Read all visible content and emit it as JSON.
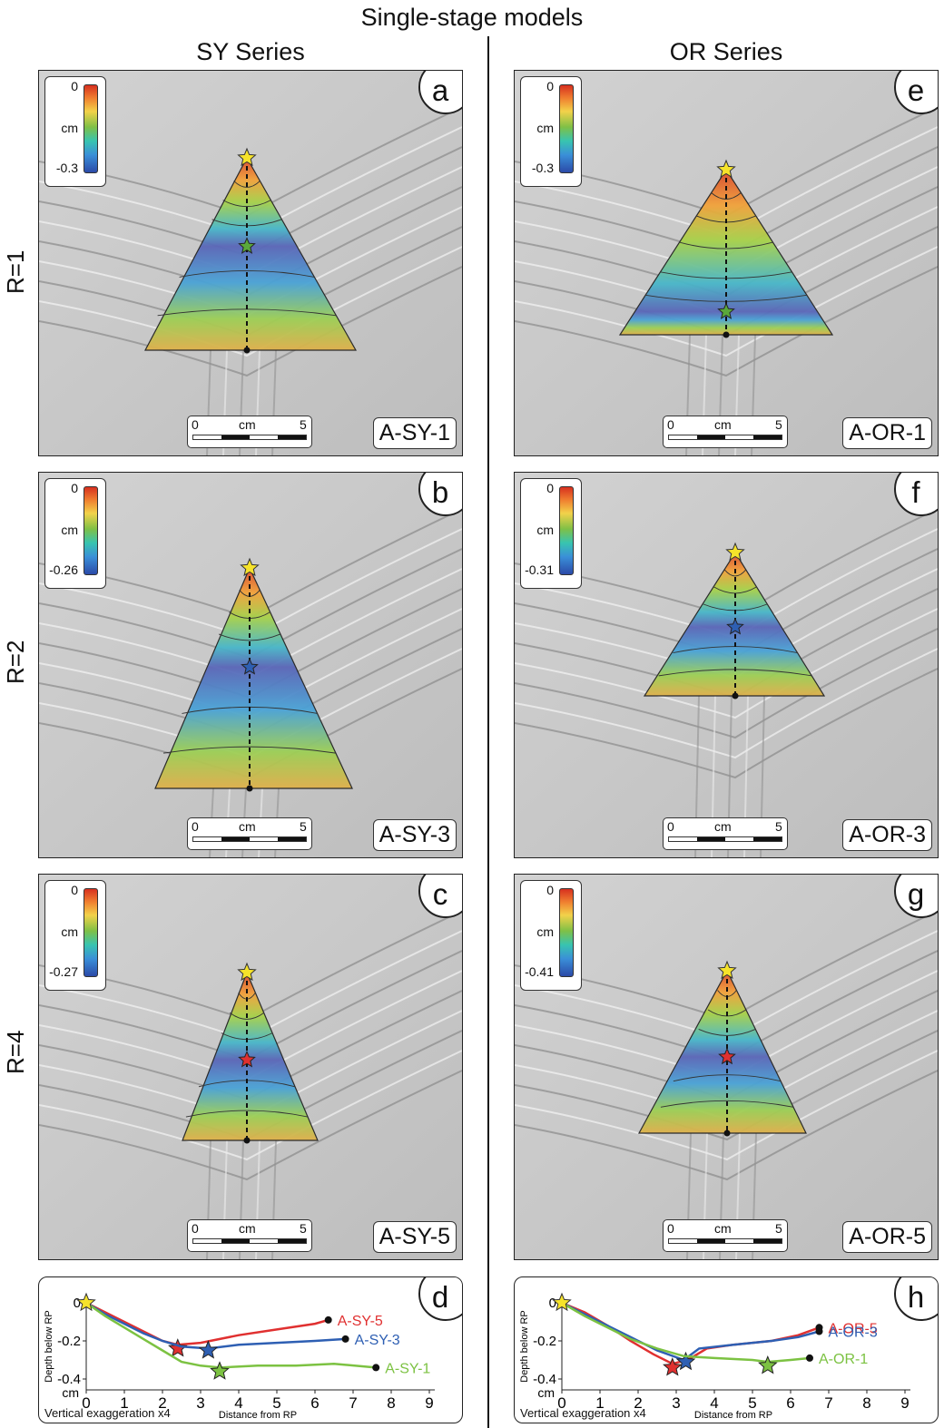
{
  "figure_title": "Single-stage models",
  "columns": [
    "SY Series",
    "OR Series"
  ],
  "rows": [
    "R=1",
    "R=2",
    "R=4"
  ],
  "panels": [
    {
      "letter": "a",
      "label": "A-SY-1",
      "legend_max": "0",
      "legend_unit": "cm",
      "legend_min": "-0.3",
      "scale": {
        "zero": "0",
        "unit": "cm",
        "five": "5"
      },
      "deep_star_color": "#5aa83a"
    },
    {
      "letter": "b",
      "label": "A-SY-3",
      "legend_max": "0",
      "legend_unit": "cm",
      "legend_min": "-0.26",
      "scale": {
        "zero": "0",
        "unit": "cm",
        "five": "5"
      },
      "deep_star_color": "#2e5fb3"
    },
    {
      "letter": "c",
      "label": "A-SY-5",
      "legend_max": "0",
      "legend_unit": "cm",
      "legend_min": "-0.27",
      "scale": {
        "zero": "0",
        "unit": "cm",
        "five": "5"
      },
      "deep_star_color": "#e03030"
    },
    {
      "letter": "e",
      "label": "A-OR-1",
      "legend_max": "0",
      "legend_unit": "cm",
      "legend_min": "-0.3",
      "scale": {
        "zero": "0",
        "unit": "cm",
        "five": "5"
      },
      "deep_star_color": "#5aa83a"
    },
    {
      "letter": "f",
      "label": "A-OR-3",
      "legend_max": "0",
      "legend_unit": "cm",
      "legend_min": "-0.31",
      "scale": {
        "zero": "0",
        "unit": "cm",
        "five": "5"
      },
      "deep_star_color": "#2e5fb3"
    },
    {
      "letter": "g",
      "label": "A-OR-5",
      "legend_max": "0",
      "legend_unit": "cm",
      "legend_min": "-0.41",
      "scale": {
        "zero": "0",
        "unit": "cm",
        "five": "5"
      },
      "deep_star_color": "#e03030"
    }
  ],
  "profiles": [
    {
      "letter": "d",
      "ylabel": "Depth below RP",
      "yunit": "cm",
      "xlabel": "Distance from RP",
      "note": "Vertical exaggeration x4",
      "x_ticks": [
        "0",
        "1",
        "2",
        "3",
        "4",
        "5",
        "6",
        "7",
        "8",
        "9"
      ],
      "y_ticks": [
        "0",
        "-0.2",
        "-0.4"
      ],
      "series": [
        {
          "name": "A-SY-5",
          "color": "#e03030",
          "points": [
            [
              0,
              0
            ],
            [
              0.5,
              -0.05
            ],
            [
              1,
              -0.1
            ],
            [
              1.5,
              -0.15
            ],
            [
              2,
              -0.2
            ],
            [
              2.4,
              -0.22
            ],
            [
              3,
              -0.21
            ],
            [
              4,
              -0.17
            ],
            [
              5,
              -0.14
            ],
            [
              6,
              -0.11
            ],
            [
              6.35,
              -0.09
            ]
          ],
          "star": [
            2.4,
            -0.24
          ]
        },
        {
          "name": "A-SY-3",
          "color": "#2e5fb3",
          "points": [
            [
              0,
              0
            ],
            [
              0.5,
              -0.06
            ],
            [
              1,
              -0.11
            ],
            [
              1.5,
              -0.16
            ],
            [
              2,
              -0.2
            ],
            [
              2.5,
              -0.23
            ],
            [
              3.2,
              -0.24
            ],
            [
              4,
              -0.22
            ],
            [
              5,
              -0.21
            ],
            [
              6,
              -0.2
            ],
            [
              6.8,
              -0.19
            ]
          ],
          "star": [
            3.2,
            -0.25
          ]
        },
        {
          "name": "A-SY-1",
          "color": "#7cc242",
          "points": [
            [
              0,
              0
            ],
            [
              0.5,
              -0.07
            ],
            [
              1,
              -0.13
            ],
            [
              1.5,
              -0.19
            ],
            [
              2,
              -0.25
            ],
            [
              2.5,
              -0.31
            ],
            [
              3,
              -0.33
            ],
            [
              3.5,
              -0.34
            ],
            [
              4.5,
              -0.33
            ],
            [
              5.5,
              -0.33
            ],
            [
              6.5,
              -0.32
            ],
            [
              7.6,
              -0.34
            ]
          ],
          "star": [
            3.5,
            -0.36
          ]
        }
      ]
    },
    {
      "letter": "h",
      "ylabel": "Depth below RP",
      "yunit": "cm",
      "xlabel": "Distance from RP",
      "note": "Vertical exaggeration x4",
      "x_ticks": [
        "0",
        "1",
        "2",
        "3",
        "4",
        "5",
        "6",
        "7",
        "8",
        "9"
      ],
      "y_ticks": [
        "0",
        "-0.2",
        "-0.4"
      ],
      "series": [
        {
          "name": "A-OR-5",
          "color": "#e03030",
          "points": [
            [
              0,
              0
            ],
            [
              0.6,
              -0.05
            ],
            [
              1.2,
              -0.12
            ],
            [
              1.8,
              -0.2
            ],
            [
              2.4,
              -0.27
            ],
            [
              2.9,
              -0.32
            ],
            [
              3.3,
              -0.3
            ],
            [
              3.8,
              -0.24
            ],
            [
              4.5,
              -0.22
            ],
            [
              5.5,
              -0.2
            ],
            [
              6.2,
              -0.17
            ],
            [
              6.75,
              -0.13
            ]
          ],
          "star": [
            2.9,
            -0.34
          ]
        },
        {
          "name": "A-OR-3",
          "color": "#2e5fb3",
          "points": [
            [
              0,
              0
            ],
            [
              0.6,
              -0.06
            ],
            [
              1.2,
              -0.12
            ],
            [
              1.8,
              -0.18
            ],
            [
              2.5,
              -0.25
            ],
            [
              3.2,
              -0.3
            ],
            [
              3.6,
              -0.24
            ],
            [
              4.5,
              -0.22
            ],
            [
              5.5,
              -0.2
            ],
            [
              6.2,
              -0.18
            ],
            [
              6.75,
              -0.15
            ]
          ],
          "star": [
            3.25,
            -0.31
          ]
        },
        {
          "name": "A-OR-1",
          "color": "#7cc242",
          "points": [
            [
              0,
              0
            ],
            [
              0.6,
              -0.07
            ],
            [
              1.2,
              -0.13
            ],
            [
              1.8,
              -0.19
            ],
            [
              2.5,
              -0.24
            ],
            [
              3.2,
              -0.28
            ],
            [
              4,
              -0.29
            ],
            [
              5,
              -0.3
            ],
            [
              5.4,
              -0.31
            ],
            [
              6,
              -0.3
            ],
            [
              6.5,
              -0.29
            ]
          ],
          "star": [
            5.4,
            -0.33
          ]
        }
      ]
    }
  ]
}
